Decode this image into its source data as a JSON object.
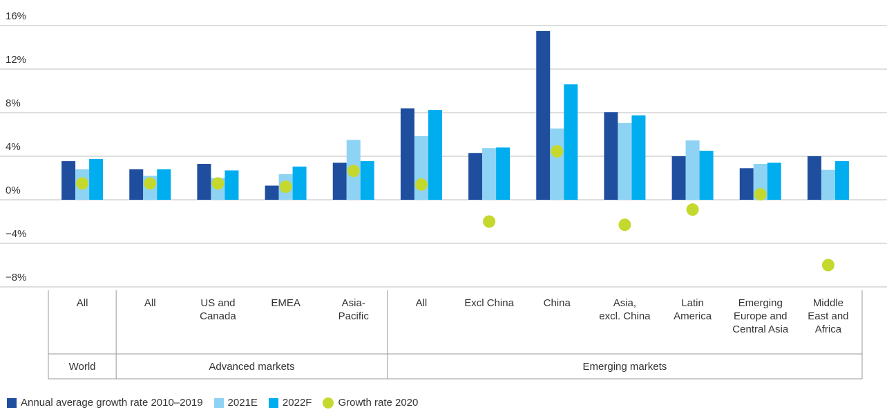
{
  "chart_data": {
    "type": "bar",
    "groups": [
      {
        "name": "World",
        "categories": [
          "All"
        ]
      },
      {
        "name": "Advanced markets",
        "categories": [
          "All",
          "US and\nCanada",
          "EMEA",
          "Asia-\nPacific"
        ]
      },
      {
        "name": "Emerging markets",
        "categories": [
          "All",
          "Excl China",
          "China",
          "Asia,\nexcl. China",
          "Latin\nAmerica",
          "Emerging\nEurope and\nCentral Asia",
          "Middle\nEast and\nAfrica"
        ]
      }
    ],
    "series": [
      {
        "name": "Annual average growth rate 2010–2019",
        "color": "#1f4e9f",
        "mark": "bar",
        "values": [
          3.55,
          2.8,
          3.3,
          1.3,
          3.4,
          8.4,
          4.3,
          15.5,
          8.05,
          4.0,
          2.9,
          4.0
        ]
      },
      {
        "name": "2021E",
        "color": "#8fd3f4",
        "mark": "bar",
        "values": [
          2.8,
          2.2,
          2.0,
          2.35,
          5.5,
          5.85,
          4.75,
          6.55,
          7.05,
          5.45,
          3.3,
          2.75
        ]
      },
      {
        "name": "2022F",
        "color": "#00adef",
        "mark": "bar",
        "values": [
          3.75,
          2.8,
          2.7,
          3.05,
          3.55,
          8.25,
          4.8,
          10.6,
          7.75,
          4.5,
          3.4,
          3.55
        ]
      },
      {
        "name": "Growth rate 2020",
        "color": "#c5d82e",
        "mark": "dot",
        "values": [
          1.5,
          1.5,
          1.5,
          1.2,
          2.65,
          1.4,
          -2.0,
          4.45,
          -2.3,
          -0.9,
          0.5,
          -6.0
        ]
      }
    ],
    "ylim": [
      -8,
      16
    ],
    "yticks": [
      {
        "value": -8,
        "label": "−8%"
      },
      {
        "value": -4,
        "label": "−4%"
      },
      {
        "value": 0,
        "label": "0%"
      },
      {
        "value": 4,
        "label": "4%"
      },
      {
        "value": 8,
        "label": "8%"
      },
      {
        "value": 12,
        "label": "12%"
      },
      {
        "value": 16,
        "label": "16%"
      }
    ],
    "grid": true,
    "legend": "bottom"
  }
}
